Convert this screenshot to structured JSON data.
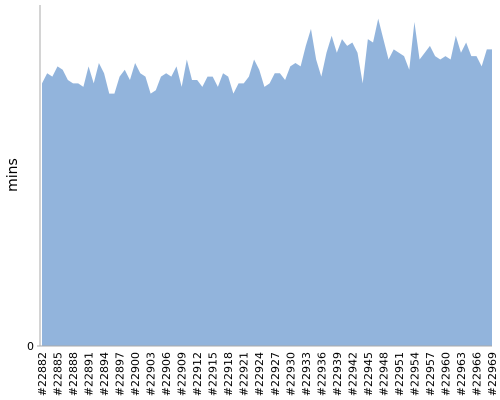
{
  "chart_data": {
    "type": "area",
    "y_label": "mins",
    "categories": [
      "#22882",
      null,
      null,
      "#22885",
      null,
      null,
      "#22888",
      null,
      null,
      "#22891",
      null,
      null,
      "#22894",
      null,
      null,
      "#22897",
      null,
      null,
      "#22900",
      null,
      null,
      "#22903",
      null,
      null,
      "#22906",
      null,
      null,
      "#22909",
      null,
      null,
      "#22912",
      null,
      null,
      "#22915",
      null,
      null,
      "#22918",
      null,
      null,
      "#22921",
      null,
      null,
      "#22924",
      null,
      null,
      "#22927",
      null,
      null,
      "#22930",
      null,
      null,
      "#22933",
      null,
      null,
      "#22936",
      null,
      null,
      "#22939",
      null,
      null,
      "#22942",
      null,
      null,
      "#22945",
      null,
      null,
      "#22948",
      null,
      null,
      "#22951",
      null,
      null,
      "#22954",
      null,
      null,
      "#22957",
      null,
      null,
      "#22960",
      null,
      null,
      "#22963",
      null,
      null,
      "#22966",
      null,
      null,
      "#22969"
    ],
    "values": [
      77,
      80,
      79,
      82,
      81,
      78,
      77,
      77,
      76,
      82,
      77,
      83,
      80,
      74,
      74,
      79,
      81,
      78,
      83,
      80,
      79,
      74,
      75,
      79,
      80,
      79,
      82,
      76,
      84,
      78,
      78,
      76,
      79,
      79,
      76,
      80,
      79,
      74,
      77,
      77,
      79,
      84,
      81,
      76,
      77,
      80,
      80,
      78,
      82,
      83,
      82,
      88,
      93,
      84,
      79,
      86,
      91,
      86,
      90,
      88,
      89,
      86,
      77,
      90,
      89,
      96,
      90,
      84,
      87,
      86,
      85,
      81,
      95,
      84,
      86,
      88,
      85,
      84,
      85,
      84,
      91,
      86,
      89,
      85,
      85,
      82,
      87,
      87
    ],
    "color": "#92b4dc",
    "ylim": [
      0,
      100
    ],
    "yticks": [
      0
    ]
  }
}
